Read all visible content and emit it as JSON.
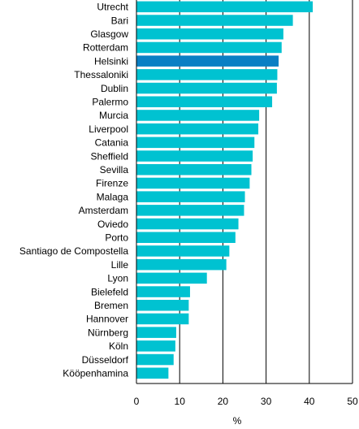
{
  "chart_data": {
    "type": "bar",
    "orientation": "horizontal",
    "categories": [
      "Utrecht",
      "Bari",
      "Glasgow",
      "Rotterdam",
      "Helsinki",
      "Thessaloniki",
      "Dublin",
      "Palermo",
      "Murcia",
      "Liverpool",
      "Catania",
      "Sheffield",
      "Sevilla",
      "Firenze",
      "Malaga",
      "Amsterdam",
      "Oviedo",
      "Porto",
      "Santiago de Compostella",
      "Lille",
      "Lyon",
      "Bielefeld",
      "Bremen",
      "Hannover",
      "Nürnberg",
      "Köln",
      "Düsseldorf",
      "Kööpenhamina"
    ],
    "values": [
      40.8,
      36.2,
      34.0,
      33.6,
      32.9,
      32.6,
      32.5,
      31.4,
      28.4,
      28.2,
      27.3,
      26.9,
      26.6,
      26.2,
      25.1,
      24.9,
      23.6,
      22.9,
      21.5,
      20.8,
      16.3,
      12.4,
      12.1,
      12.1,
      9.2,
      9.0,
      8.6,
      7.4
    ],
    "highlight": "Helsinki",
    "colors": {
      "bar": "#00C2D1",
      "highlight": "#0A7FC4",
      "grid": "#000000"
    },
    "xlim": [
      0,
      50
    ],
    "xticks": [
      "0",
      "10",
      "20",
      "30",
      "40",
      "50"
    ],
    "xlabel": "%",
    "grid": true
  }
}
